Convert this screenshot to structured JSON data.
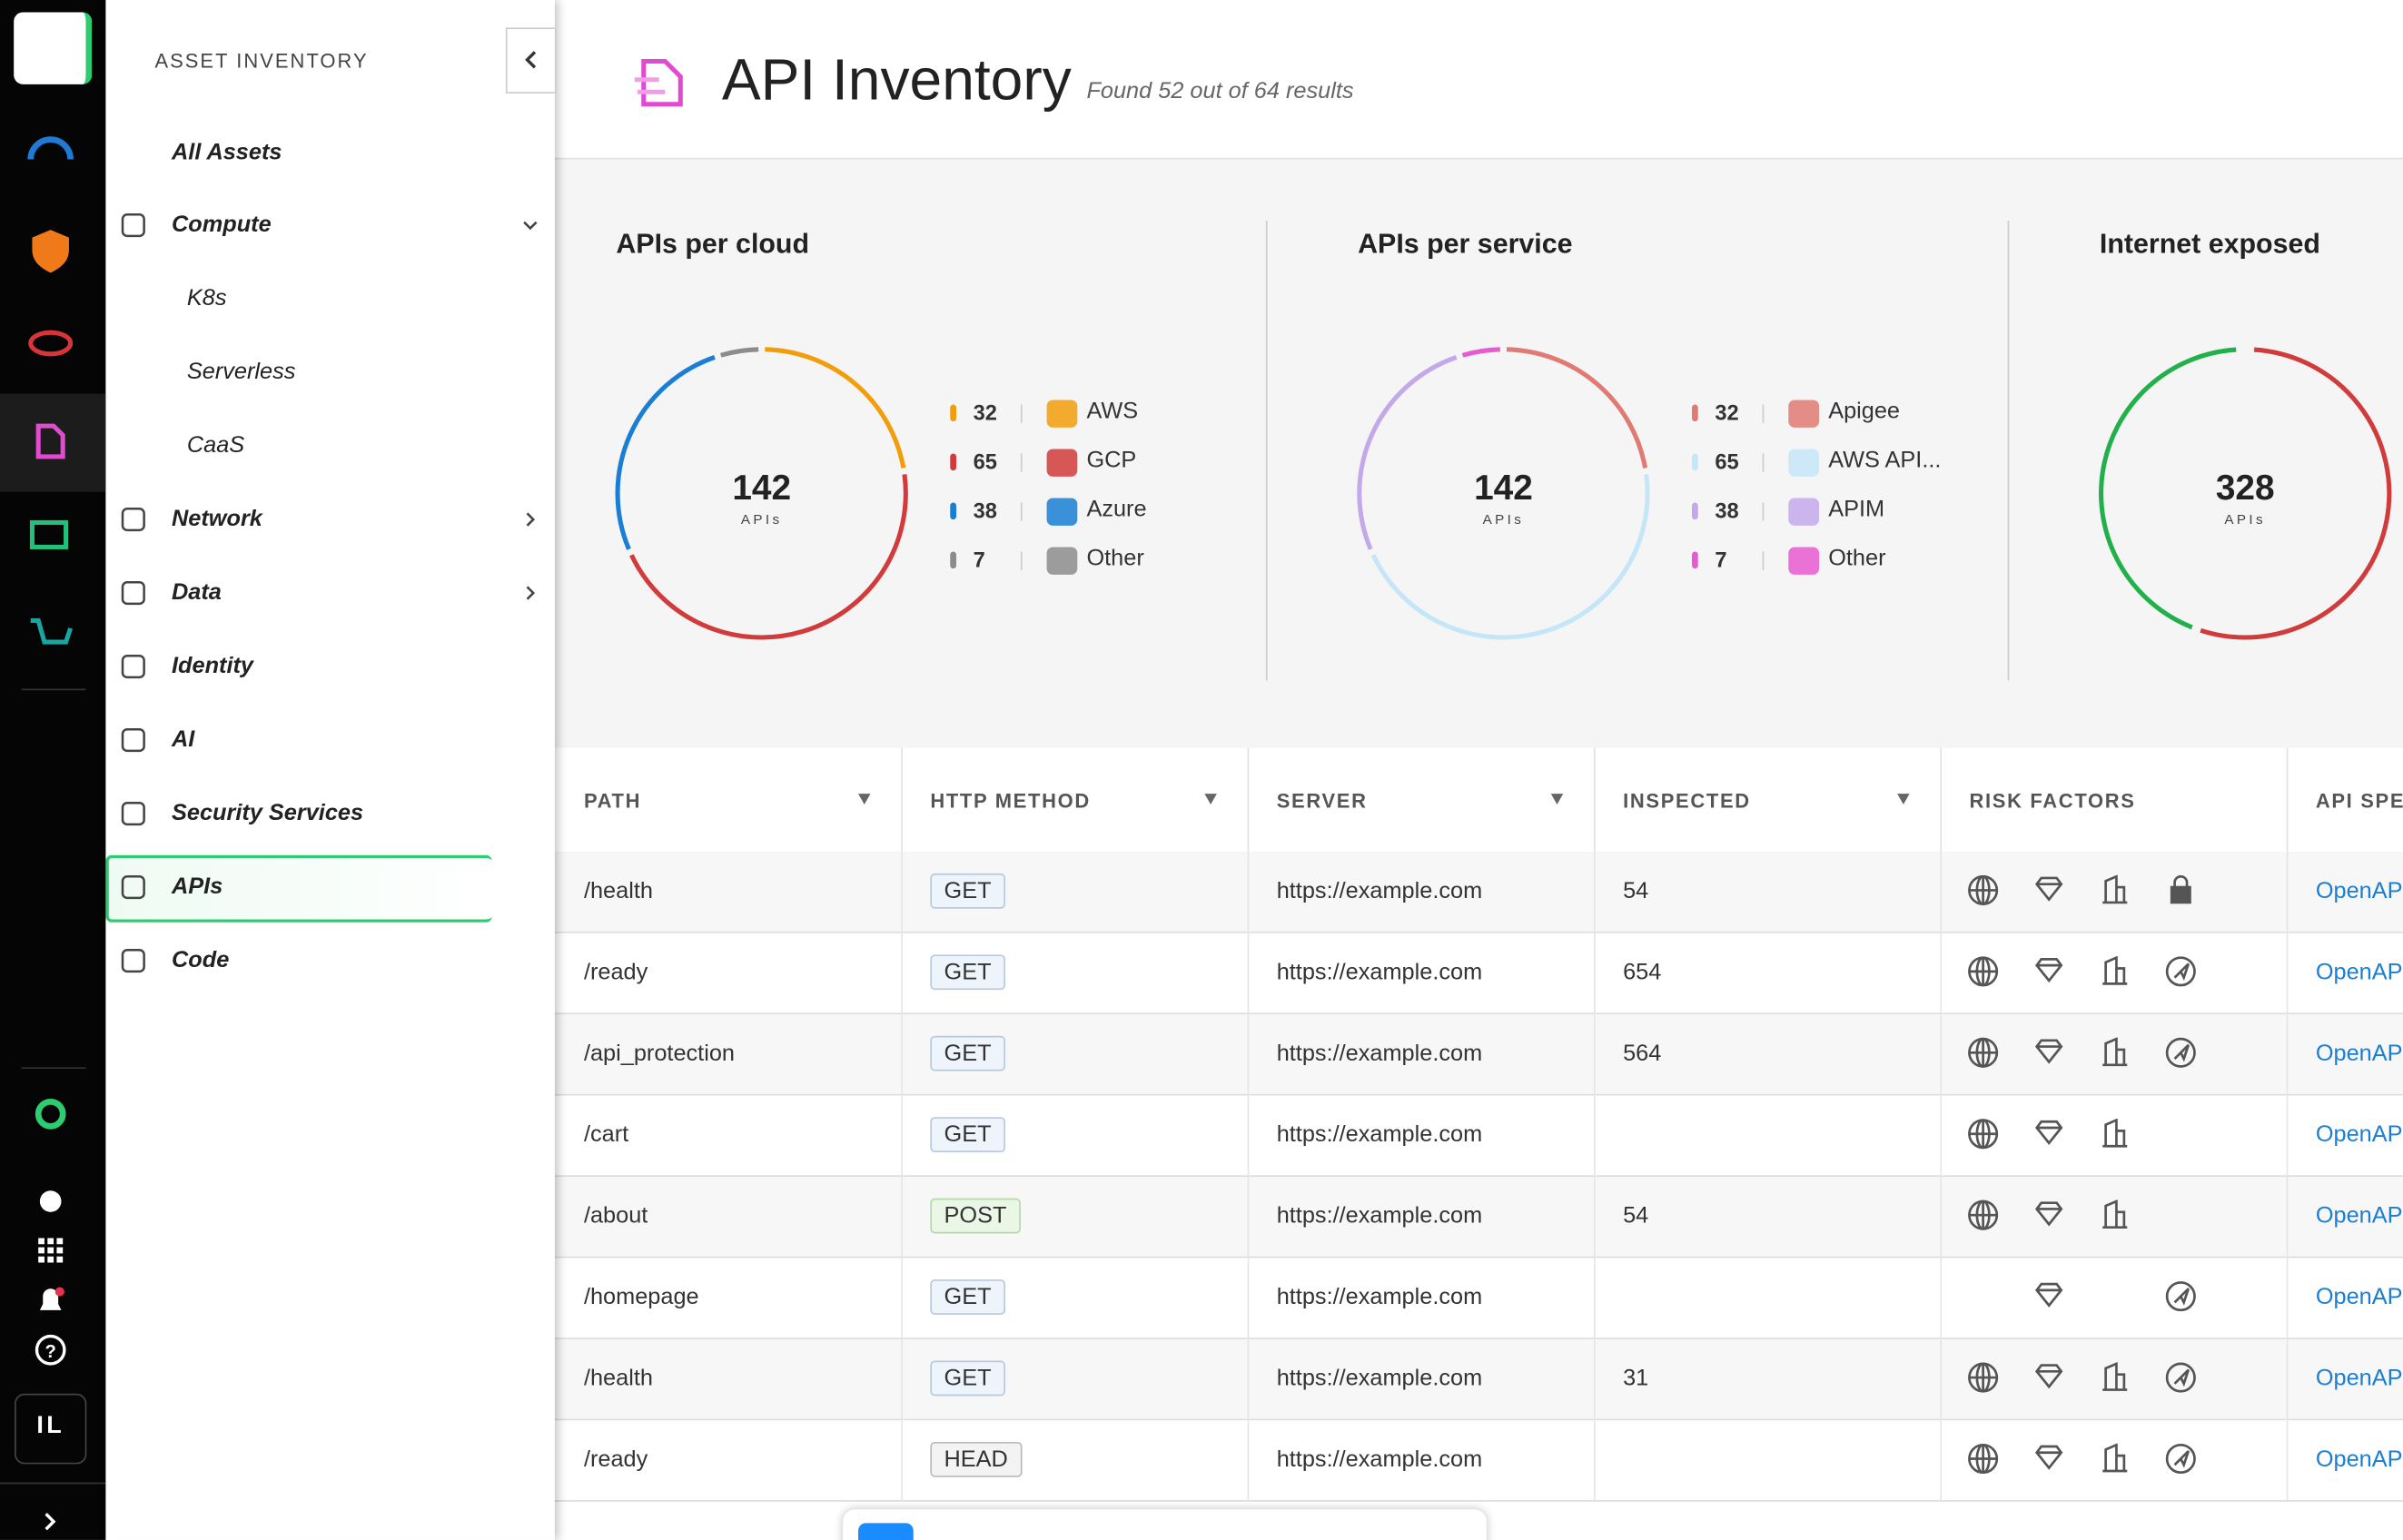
{
  "header": {
    "title": "API Inventory",
    "subtitle": "Found 52 out of 64 results"
  },
  "sidebar": {
    "heading": "ASSET INVENTORY",
    "items": [
      "All Assets",
      "Compute",
      "K8s",
      "Serverless",
      "CaaS",
      "Network",
      "Data",
      "Identity",
      "AI",
      "Security Services",
      "APIs",
      "Code"
    ]
  },
  "rail": {
    "avatar": "IL"
  },
  "widgets": [
    {
      "title": "APIs per cloud",
      "total": 142,
      "total_label": "APIs",
      "legend": [
        {
          "value": 32,
          "label": "AWS",
          "color": "#f29d0c"
        },
        {
          "value": 65,
          "label": "GCP",
          "color": "#d13b3b"
        },
        {
          "value": 38,
          "label": "Azure",
          "color": "#1a7fd4"
        },
        {
          "value": 7,
          "label": "Other",
          "color": "#8c8c8c"
        }
      ]
    },
    {
      "title": "APIs per service",
      "total": 142,
      "total_label": "APIs",
      "legend": [
        {
          "value": 32,
          "label": "Apigee",
          "color": "#e07a72"
        },
        {
          "value": 65,
          "label": "AWS API...",
          "color": "#c5e6f8"
        },
        {
          "value": 38,
          "label": "APIM",
          "color": "#c3a9ea"
        },
        {
          "value": 7,
          "label": "Other",
          "color": "#e85bd0"
        }
      ]
    },
    {
      "title": "Internet exposed",
      "total": 328,
      "total_label": "APIs"
    }
  ],
  "table": {
    "columns": [
      "PATH",
      "HTTP METHOD",
      "SERVER",
      "INSPECTED",
      "RISK FACTORS",
      "API SPEC"
    ],
    "rows": [
      [
        "/health",
        "GET",
        "https://example.com",
        54,
        "OpenAPI"
      ],
      [
        "/ready",
        "GET",
        "https://example.com",
        654,
        "OpenAPI"
      ],
      [
        "/api_protection",
        "GET",
        "https://example.com",
        564,
        "OpenAPI"
      ],
      [
        "/cart",
        "GET",
        "https://example.com",
        null,
        "OpenAPI"
      ],
      [
        "/about",
        "POST",
        "https://example.com",
        54,
        "OpenAPI"
      ],
      [
        "/homepage",
        "GET",
        "https://example.com",
        null,
        "OpenAPI"
      ],
      [
        "/health",
        "GET",
        "https://example.com",
        31,
        "OpenAPI"
      ],
      [
        "/ready",
        "HEAD",
        "https://example.com",
        null,
        "OpenAPI"
      ]
    ]
  }
}
